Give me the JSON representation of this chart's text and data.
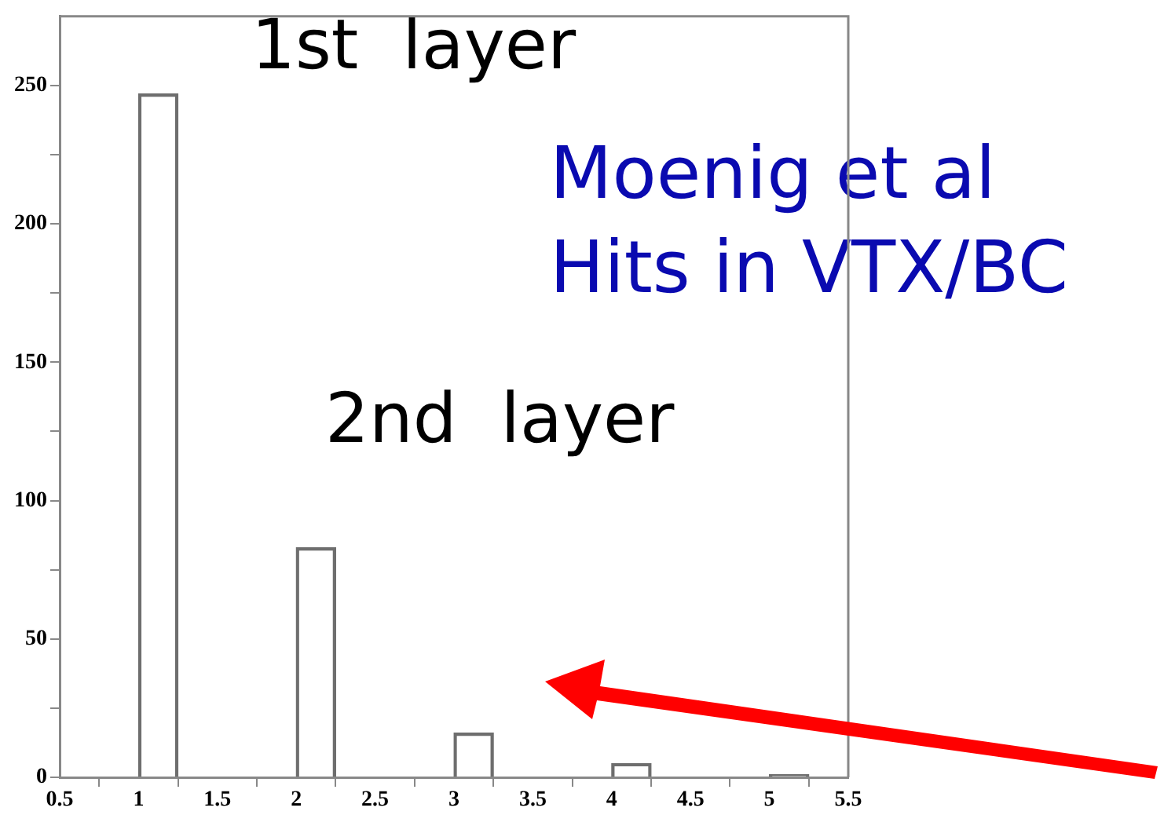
{
  "chart_data": {
    "type": "bar",
    "x": [
      1.125,
      2.125,
      3.125,
      4.125,
      5.125
    ],
    "values": [
      247,
      83,
      16,
      5,
      1
    ],
    "color": "#6e6e6e",
    "xlim": [
      0.5,
      5.5
    ],
    "xticks": [
      0.5,
      1,
      1.5,
      2,
      2.5,
      3,
      3.5,
      4,
      4.5,
      5,
      5.5
    ],
    "ylim": [
      0,
      275
    ],
    "yticks": [
      0,
      {
        "value": 25,
        "label": null
      },
      50,
      {
        "value": 75,
        "label": null
      },
      100,
      {
        "value": 125,
        "label": null
      },
      150,
      {
        "value": 175,
        "label": null
      },
      200,
      {
        "value": 225,
        "label": null
      },
      250
    ],
    "annotations": [
      "1st  layer",
      "2nd  layer",
      "Moenig et al",
      "Hits in VTX/BC"
    ]
  }
}
